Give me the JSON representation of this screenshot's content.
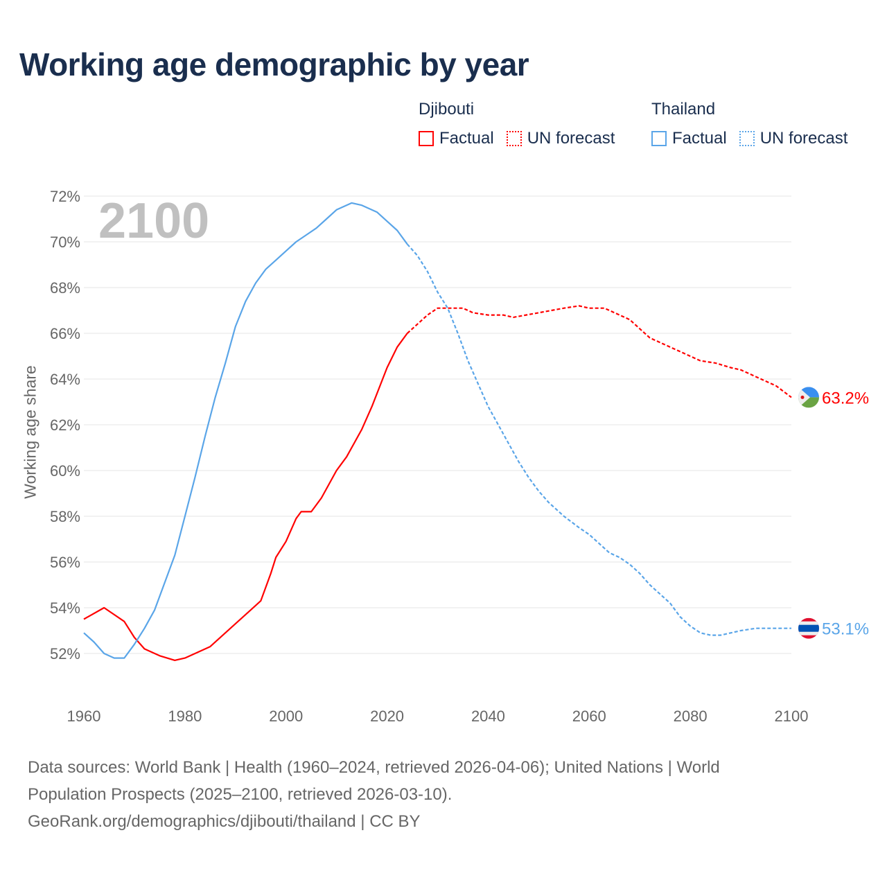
{
  "title": "Working age demographic by year",
  "legend": {
    "groups": [
      {
        "name": "Djibouti",
        "factual": "Factual",
        "forecast": "UN forecast",
        "color": "#ff0000"
      },
      {
        "name": "Thailand",
        "factual": "Factual",
        "forecast": "UN forecast",
        "color": "#5aa5e8"
      }
    ]
  },
  "year_watermark": "2100",
  "footer": {
    "line1": "Data sources: World Bank | Health (1960–2024, retrieved 2026-04-06); United Nations | World",
    "line2": "Population Prospects (2025–2100, retrieved 2026-03-10).",
    "line3": "GeoRank.org/demographics/djibouti/thailand | CC BY"
  },
  "chart_data": {
    "type": "line",
    "title": "Working age demographic by year",
    "ylabel": "Working age share",
    "xlabel": "",
    "xlim": [
      1960,
      2100
    ],
    "ylim": [
      50.5,
      72.5
    ],
    "xticks": [
      "1960",
      "1980",
      "2000",
      "2020",
      "2040",
      "2060",
      "2080",
      "2100"
    ],
    "yticks": [
      "52%",
      "54%",
      "56%",
      "58%",
      "60%",
      "62%",
      "64%",
      "66%",
      "68%",
      "70%",
      "72%"
    ],
    "grid": true,
    "factual_until": 2024,
    "series": [
      {
        "name": "Djibouti",
        "color": "#ff0000",
        "end_label": "63.2%",
        "x": [
          1960,
          1964,
          1968,
          1970,
          1972,
          1975,
          1978,
          1980,
          1983,
          1985,
          1990,
          1993,
          1995,
          1997,
          1998,
          2000,
          2002,
          2003,
          2005,
          2007,
          2010,
          2012,
          2015,
          2017,
          2020,
          2022,
          2024,
          2026,
          2028,
          2030,
          2035,
          2037,
          2040,
          2043,
          2045,
          2050,
          2055,
          2058,
          2060,
          2063,
          2065,
          2068,
          2070,
          2072,
          2075,
          2078,
          2080,
          2082,
          2085,
          2088,
          2090,
          2095,
          2097,
          2100
        ],
        "y": [
          53.5,
          54.0,
          53.4,
          52.7,
          52.2,
          51.9,
          51.7,
          51.8,
          52.1,
          52.3,
          53.3,
          53.9,
          54.3,
          55.5,
          56.2,
          56.9,
          57.9,
          58.2,
          58.2,
          58.8,
          60.0,
          60.6,
          61.8,
          62.8,
          64.5,
          65.4,
          66.0,
          66.4,
          66.8,
          67.1,
          67.1,
          66.9,
          66.8,
          66.8,
          66.7,
          66.9,
          67.1,
          67.2,
          67.1,
          67.1,
          66.9,
          66.6,
          66.2,
          65.8,
          65.5,
          65.2,
          65.0,
          64.8,
          64.7,
          64.5,
          64.4,
          63.9,
          63.7,
          63.2
        ]
      },
      {
        "name": "Thailand",
        "color": "#5aa5e8",
        "end_label": "53.1%",
        "x": [
          1960,
          1962,
          1964,
          1966,
          1968,
          1970,
          1972,
          1974,
          1976,
          1978,
          1980,
          1982,
          1984,
          1986,
          1988,
          1990,
          1992,
          1994,
          1996,
          1998,
          2000,
          2002,
          2004,
          2006,
          2008,
          2010,
          2013,
          2015,
          2018,
          2020,
          2022,
          2024,
          2026,
          2028,
          2030,
          2032,
          2034,
          2036,
          2038,
          2040,
          2042,
          2044,
          2046,
          2048,
          2050,
          2052,
          2055,
          2058,
          2060,
          2062,
          2064,
          2066,
          2068,
          2070,
          2072,
          2074,
          2076,
          2078,
          2080,
          2082,
          2084,
          2086,
          2088,
          2090,
          2093,
          2095,
          2100
        ],
        "y": [
          52.9,
          52.5,
          52.0,
          51.8,
          51.8,
          52.4,
          53.1,
          53.9,
          55.1,
          56.3,
          58.0,
          59.7,
          61.5,
          63.2,
          64.7,
          66.3,
          67.4,
          68.2,
          68.8,
          69.2,
          69.6,
          70.0,
          70.3,
          70.6,
          71.0,
          71.4,
          71.7,
          71.6,
          71.3,
          70.9,
          70.5,
          69.9,
          69.4,
          68.7,
          67.8,
          67.1,
          66.0,
          64.8,
          63.8,
          62.8,
          62.0,
          61.2,
          60.4,
          59.7,
          59.1,
          58.6,
          58.0,
          57.5,
          57.2,
          56.8,
          56.4,
          56.2,
          55.9,
          55.5,
          55.0,
          54.6,
          54.2,
          53.6,
          53.2,
          52.9,
          52.8,
          52.8,
          52.9,
          53.0,
          53.1,
          53.1,
          53.1
        ]
      }
    ]
  }
}
